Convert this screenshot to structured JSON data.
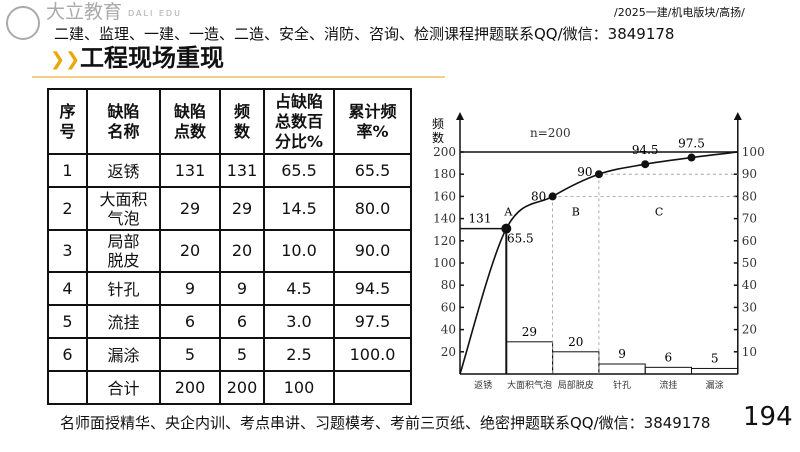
{
  "header": {
    "logo_text": "大立教育",
    "logo_sub": "DALI EDU",
    "banner": "二建、监理、一建、一造、二造、安全、消防、咨询、检测课程押题联系QQ/微信：3849178",
    "breadcrumb": "/2025一建/机电版块/高扬/",
    "title": "工程现场重现",
    "accent_color": "#e9a800"
  },
  "table": {
    "headers": [
      "序号",
      "缺陷名称",
      "缺陷点数",
      "频数",
      "占缺陷总数百分比%",
      "累计频率%"
    ],
    "rows": [
      [
        "1",
        "返锈",
        "131",
        "131",
        "65.5",
        "65.5"
      ],
      [
        "2",
        "大面积气泡",
        "29",
        "29",
        "14.5",
        "80.0"
      ],
      [
        "3",
        "局部脱皮",
        "20",
        "20",
        "10.0",
        "90.0"
      ],
      [
        "4",
        "针孔",
        "9",
        "9",
        "4.5",
        "94.5"
      ],
      [
        "5",
        "流挂",
        "6",
        "6",
        "3.0",
        "97.5"
      ],
      [
        "6",
        "漏涂",
        "5",
        "5",
        "2.5",
        "100.0"
      ],
      [
        "",
        "合计",
        "200",
        "200",
        "100",
        ""
      ]
    ]
  },
  "chart_data": {
    "type": "bar",
    "title": "",
    "annotation": "n=200",
    "ylabel": "频数",
    "categories": [
      "返锈",
      "大面积气泡",
      "局部脱皮",
      "针孔",
      "流挂",
      "漏涂"
    ],
    "values": [
      131,
      29,
      20,
      9,
      6,
      5
    ],
    "cumulative_percent": [
      65.5,
      80,
      90,
      94.5,
      97.5,
      100
    ],
    "cumulative_labels": [
      "65.5",
      "80",
      "90",
      "94.5",
      "97.5"
    ],
    "ylim": [
      0,
      200
    ],
    "y2lim": [
      0,
      100
    ],
    "yticks": [
      20,
      40,
      60,
      80,
      100,
      120,
      140,
      160,
      180,
      200
    ],
    "y2ticks": [
      10,
      20,
      30,
      40,
      50,
      60,
      70,
      80,
      90,
      100
    ],
    "zones": [
      "A",
      "B",
      "C"
    ]
  },
  "footer": {
    "text": "名师面授精华、央企内训、考点串讲、习题模考、考前三页纸、绝密押题联系QQ/微信：3849178",
    "page": "194"
  }
}
